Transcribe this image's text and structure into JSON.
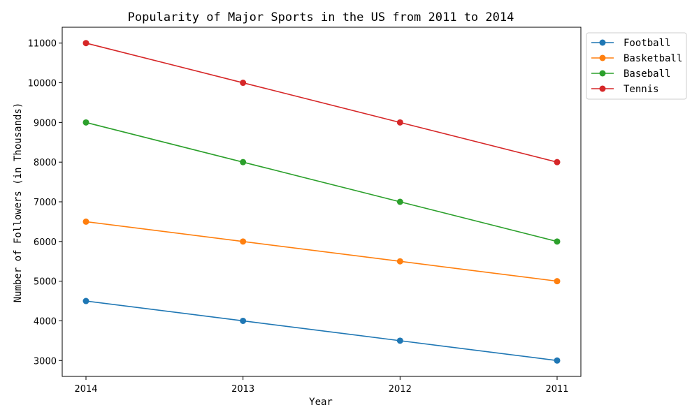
{
  "chart_data": {
    "type": "line",
    "title": "Popularity of Major Sports in the US from 2011 to 2014",
    "xlabel": "Year",
    "ylabel": "Number of Followers (in Thousands)",
    "categories": [
      "2014",
      "2013",
      "2012",
      "2011"
    ],
    "ylim": [
      2600,
      11400
    ],
    "yticks": [
      3000,
      4000,
      5000,
      6000,
      7000,
      8000,
      9000,
      10000,
      11000
    ],
    "grid": false,
    "legend_position": "outside-top-right",
    "series": [
      {
        "name": "Football",
        "color": "#1f77b4",
        "values": [
          4500,
          4000,
          3500,
          3000
        ]
      },
      {
        "name": "Basketball",
        "color": "#ff7f0e",
        "values": [
          6500,
          6000,
          5500,
          5000
        ]
      },
      {
        "name": "Baseball",
        "color": "#2ca02c",
        "values": [
          9000,
          8000,
          7000,
          6000
        ]
      },
      {
        "name": "Tennis",
        "color": "#d62728",
        "values": [
          11000,
          10000,
          9000,
          8000
        ]
      }
    ]
  }
}
